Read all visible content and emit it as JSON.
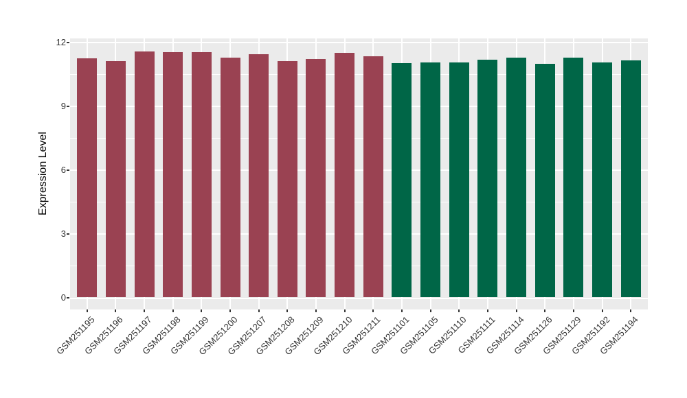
{
  "chart_data": {
    "type": "bar",
    "title": "",
    "ylabel": "Expression Level",
    "xlabel": "",
    "categories": [
      "GSM251195",
      "GSM251196",
      "GSM251197",
      "GSM251198",
      "GSM251199",
      "GSM251200",
      "GSM251207",
      "GSM251208",
      "GSM251209",
      "GSM251210",
      "GSM251211",
      "GSM251101",
      "GSM251105",
      "GSM251110",
      "GSM251111",
      "GSM251114",
      "GSM251126",
      "GSM251129",
      "GSM251192",
      "GSM251194"
    ],
    "values": [
      11.27,
      11.14,
      11.6,
      11.57,
      11.57,
      11.31,
      11.45,
      11.14,
      11.24,
      11.52,
      11.35,
      11.03,
      11.08,
      11.08,
      11.2,
      11.29,
      11.0,
      11.3,
      11.08,
      11.17
    ],
    "groups": [
      "group1",
      "group1",
      "group1",
      "group1",
      "group1",
      "group1",
      "group1",
      "group1",
      "group1",
      "group1",
      "group1",
      "group2",
      "group2",
      "group2",
      "group2",
      "group2",
      "group2",
      "group2",
      "group2",
      "group2"
    ],
    "group_colors": {
      "group1": "#9A4252",
      "group2": "#006647"
    },
    "yticks": [
      0,
      3,
      6,
      9,
      12
    ],
    "ytick_labels": [
      "0",
      "3",
      "6",
      "9",
      "12"
    ],
    "ylim": [
      0,
      12.2
    ],
    "x_tick_angle": 45,
    "legend": "none",
    "grid": "white major and minor horizontal lines, white vertical line per category",
    "panel_bg": "#EBEBEB",
    "grid_color": "#FFFFFF",
    "axis_text_color": "#333333",
    "tick_color": "#333333"
  }
}
